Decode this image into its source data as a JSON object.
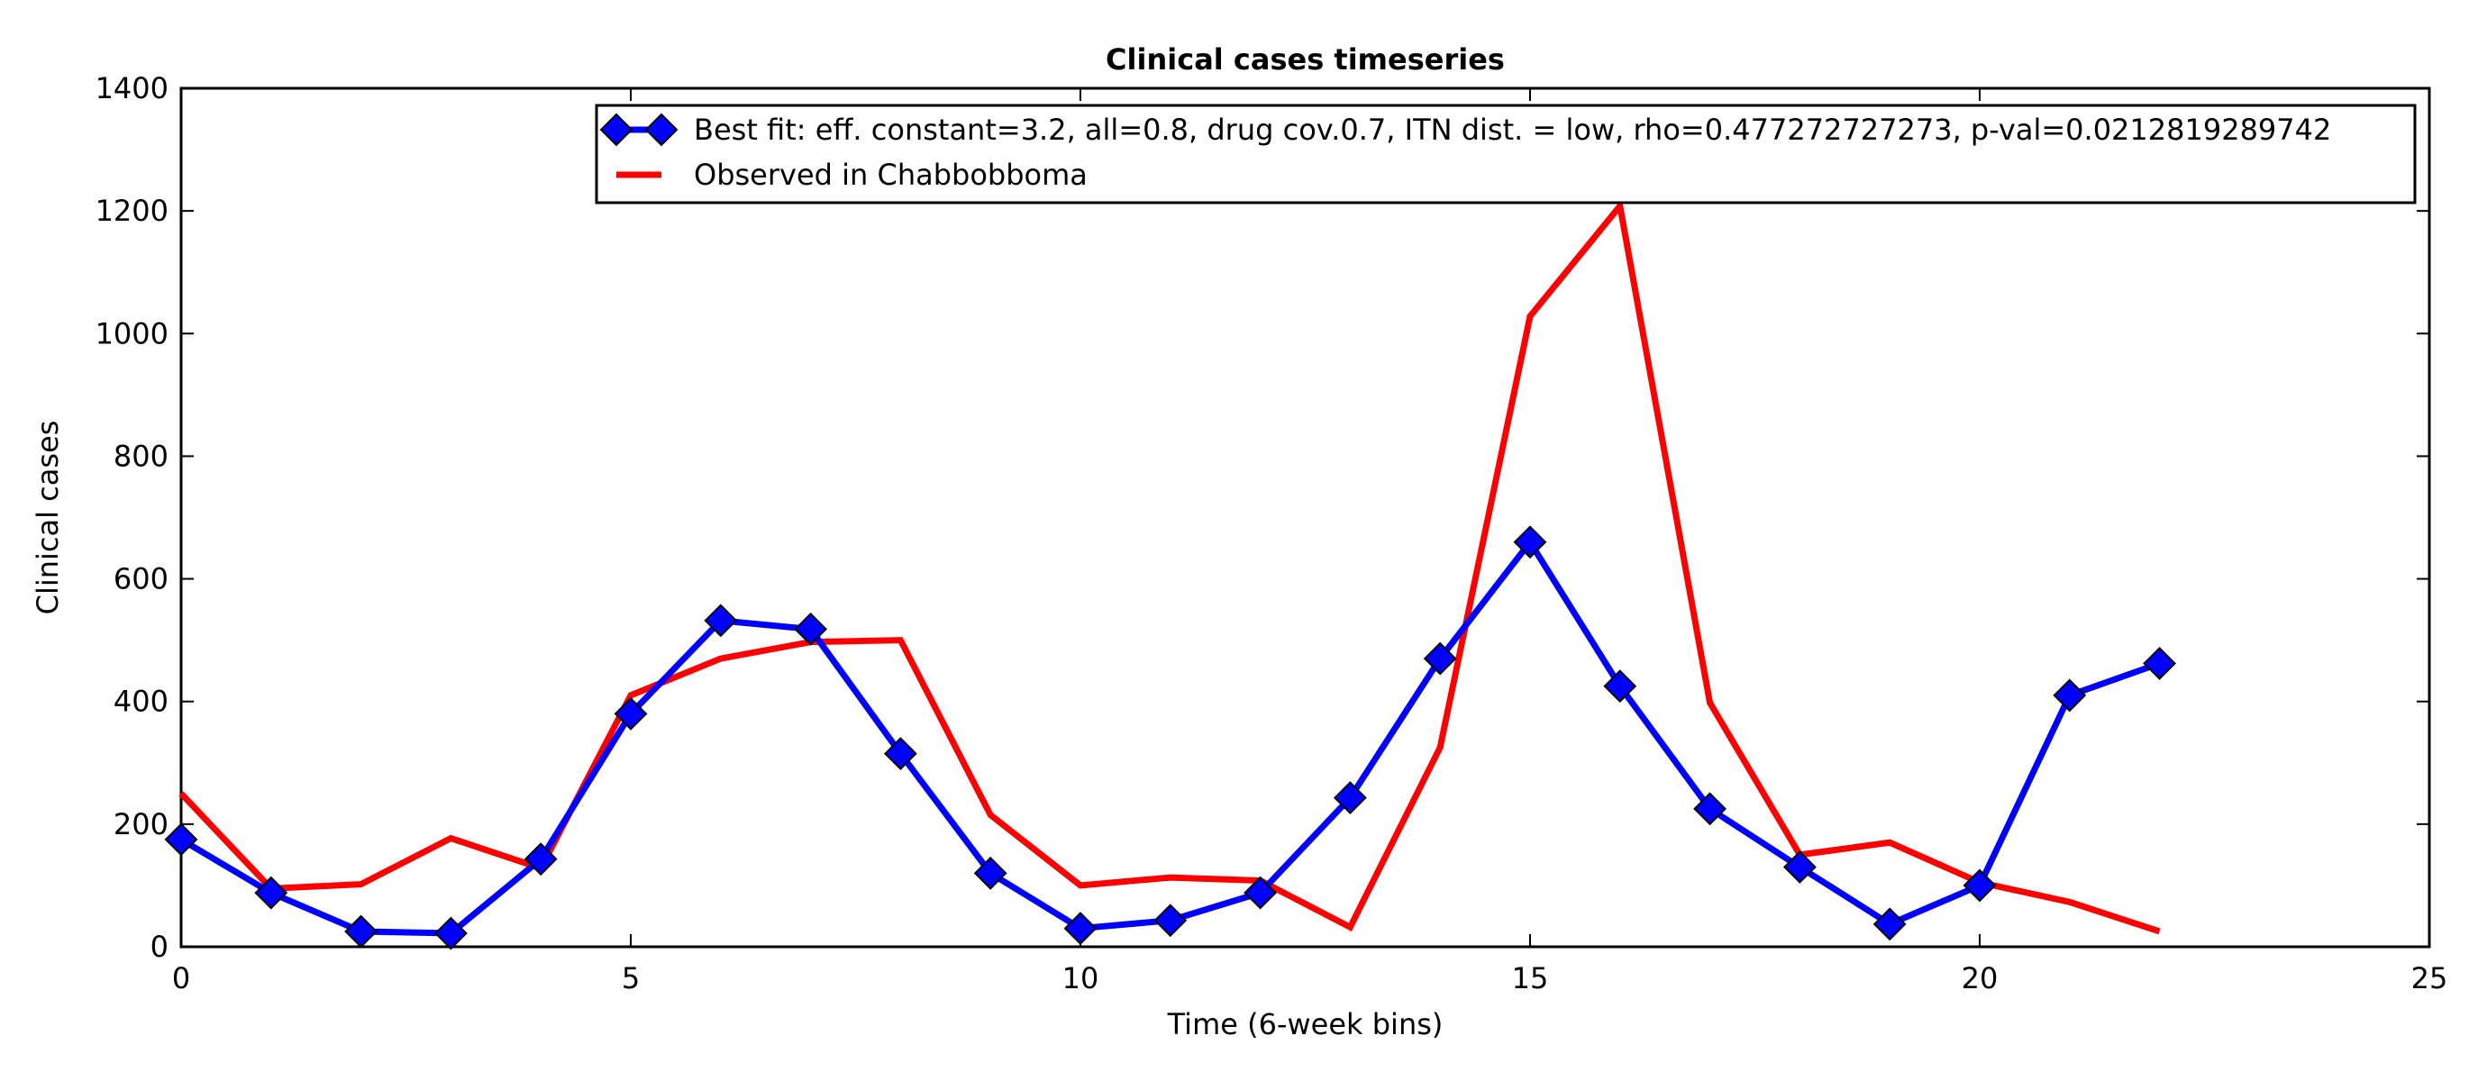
{
  "chart_data": {
    "type": "line",
    "title": "Clinical cases timeseries",
    "xlabel": "Time (6-week bins)",
    "ylabel": "Clinical cases",
    "xlim": [
      0,
      25
    ],
    "ylim": [
      0,
      1400
    ],
    "xticks": [
      0,
      5,
      10,
      15,
      20,
      25
    ],
    "yticks": [
      0,
      200,
      400,
      600,
      800,
      1000,
      1200,
      1400
    ],
    "grid": false,
    "legend_position": "top-right",
    "series": [
      {
        "name": "Best fit: eff. constant=3.2, all=0.8, drug cov.0.7, ITN dist. = low, rho=0.477272727273, p-val=0.0212819289742",
        "color": "#0000ff",
        "marker": "diamond",
        "x": [
          0,
          1,
          2,
          3,
          4,
          5,
          6,
          7,
          8,
          9,
          10,
          11,
          12,
          13,
          14,
          15,
          16,
          17,
          18,
          19,
          20,
          21,
          22
        ],
        "values": [
          175,
          88,
          25,
          22,
          143,
          380,
          532,
          518,
          315,
          120,
          30,
          43,
          88,
          243,
          470,
          660,
          425,
          225,
          130,
          37,
          100,
          410,
          462
        ]
      },
      {
        "name": "Observed in Chabbobboma",
        "color": "#ff0000",
        "marker": "none",
        "x": [
          0,
          1,
          2,
          3,
          4,
          5,
          6,
          7,
          8,
          9,
          10,
          11,
          12,
          13,
          14,
          15,
          16,
          17,
          18,
          19,
          20,
          21,
          22
        ],
        "values": [
          250,
          95,
          102,
          177,
          128,
          410,
          470,
          497,
          500,
          215,
          100,
          113,
          108,
          32,
          325,
          1028,
          1208,
          398,
          150,
          170,
          105,
          73,
          25
        ]
      }
    ]
  }
}
